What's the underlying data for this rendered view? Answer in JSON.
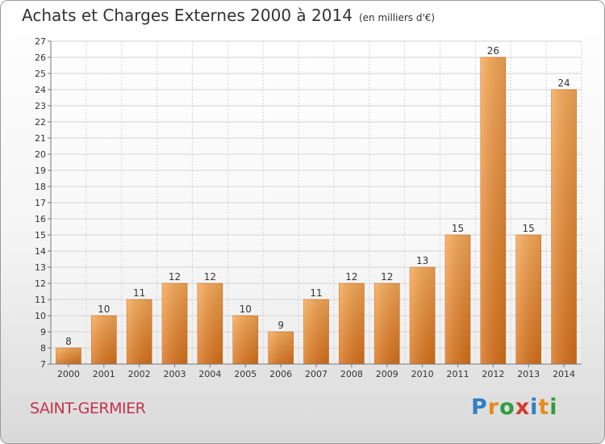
{
  "title": "Achats et Charges Externes 2000 à 2014",
  "unit": "(en milliers d'€)",
  "place": "SAINT-GERMIER",
  "logo": {
    "letters": [
      "P",
      "r",
      "o",
      "x",
      "i",
      "t",
      "i"
    ],
    "colors": [
      "#2f7fc4",
      "#e58b1f",
      "#2f9c3d",
      "#d23b2c",
      "#2f7fc4",
      "#e58b1f",
      "#2f9c3d"
    ]
  },
  "chart_data": {
    "type": "bar",
    "categories": [
      "2000",
      "2001",
      "2002",
      "2003",
      "2004",
      "2005",
      "2006",
      "2007",
      "2008",
      "2009",
      "2010",
      "2011",
      "2012",
      "2013",
      "2014"
    ],
    "values": [
      8,
      10,
      11,
      12,
      12,
      10,
      9,
      11,
      12,
      12,
      13,
      15,
      26,
      15,
      24
    ],
    "ylim": [
      7,
      27
    ],
    "yticks": [
      7,
      8,
      9,
      10,
      11,
      12,
      13,
      14,
      15,
      16,
      17,
      18,
      19,
      20,
      21,
      22,
      23,
      24,
      25,
      26,
      27
    ],
    "grid": true,
    "bar_color": "#ee8a2a",
    "title": "Achats et Charges Externes 2000 à 2014",
    "xlabel": "",
    "ylabel": ""
  }
}
